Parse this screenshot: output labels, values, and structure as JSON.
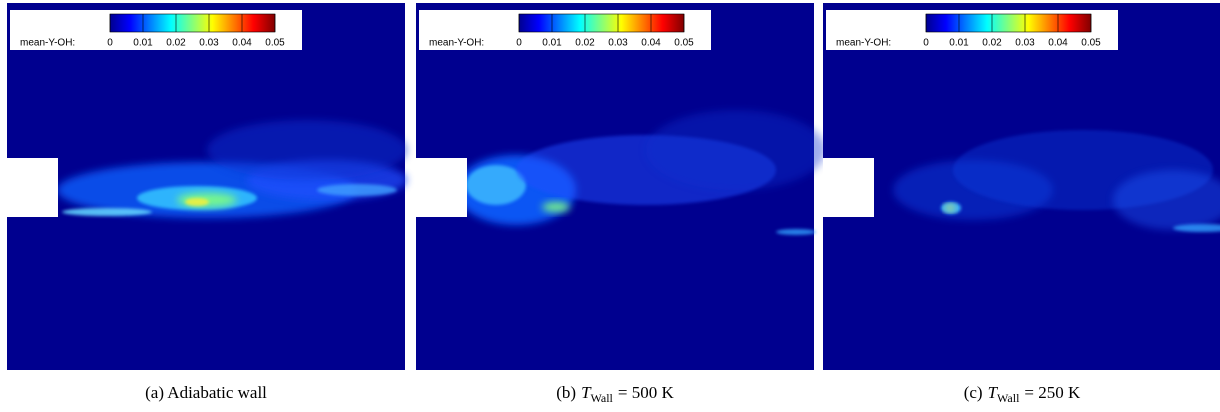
{
  "panels": [
    {
      "colorbar": {
        "label": "mean-Y-OH:",
        "range": [
          0,
          0.05
        ],
        "ticks": [
          0,
          0.01,
          0.02,
          0.03,
          0.04,
          0.05
        ]
      },
      "caption": {
        "label": "(a) Adiabatic wall"
      }
    },
    {
      "colorbar": {
        "label": "mean-Y-OH:",
        "range": [
          0,
          0.05
        ],
        "ticks": [
          0,
          0.01,
          0.02,
          0.03,
          0.04,
          0.05
        ]
      },
      "caption": {
        "label": "(b)",
        "symbol": "T",
        "subscript": "Wall",
        "rest": "= 500 K"
      }
    },
    {
      "colorbar": {
        "label": "mean-Y-OH:",
        "range": [
          0,
          0.05
        ],
        "ticks": [
          0,
          0.01,
          0.02,
          0.03,
          0.04,
          0.05
        ]
      },
      "caption": {
        "label": "(c)",
        "symbol": "T",
        "subscript": "Wall",
        "rest": "= 250 K"
      }
    }
  ]
}
